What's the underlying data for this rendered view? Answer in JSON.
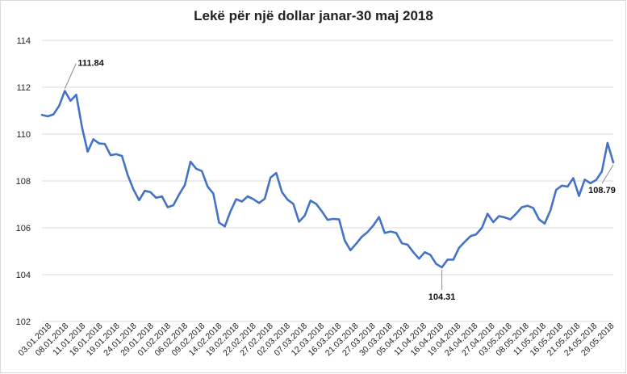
{
  "chart_data": {
    "type": "line",
    "title": "Lekë për një dollar janar-30 maj 2018",
    "xlabel": "",
    "ylabel": "",
    "ylim": [
      102,
      114
    ],
    "yticks": [
      102,
      104,
      106,
      108,
      110,
      112,
      114
    ],
    "grid": true,
    "legend": "none",
    "line_color": "#4472c4",
    "tick_labels": [
      "03.01.2018",
      "08.01.2018",
      "11.01.2018",
      "16.01.2018",
      "19.01.2018",
      "24.01.2018",
      "29.01.2018",
      "01.02.2018",
      "06.02.2018",
      "09.02.2018",
      "14.02.2018",
      "19.02.2018",
      "22.02.2018",
      "27.02.2018",
      "02.03.2018",
      "07.03.2018",
      "12.03.2018",
      "16.03.2018",
      "21.03.2018",
      "27.03.2018",
      "30.03.2018",
      "05.04.2018",
      "11.04.2018",
      "16.04.2018",
      "19.04.2018",
      "24.04.2018",
      "27.04.2018",
      "03.05.2018",
      "08.05.2018",
      "11.05.2018",
      "16.05.2018",
      "21.05.2018",
      "24.05.2018",
      "29.05.2018"
    ],
    "values": [
      110.82,
      110.76,
      110.84,
      111.2,
      111.84,
      111.42,
      111.68,
      110.3,
      109.25,
      109.78,
      109.6,
      109.58,
      109.1,
      109.14,
      109.07,
      108.26,
      107.64,
      107.18,
      107.58,
      107.52,
      107.28,
      107.34,
      106.88,
      106.96,
      107.42,
      107.82,
      108.82,
      108.52,
      108.42,
      107.76,
      107.46,
      106.22,
      106.06,
      106.7,
      107.22,
      107.12,
      107.34,
      107.22,
      107.06,
      107.24,
      108.14,
      108.34,
      107.52,
      107.2,
      107.02,
      106.26,
      106.52,
      107.16,
      107.02,
      106.7,
      106.34,
      106.38,
      106.36,
      105.46,
      105.04,
      105.32,
      105.62,
      105.82,
      106.1,
      106.46,
      105.78,
      105.84,
      105.78,
      105.34,
      105.28,
      104.96,
      104.68,
      104.96,
      104.84,
      104.46,
      104.31,
      104.64,
      104.64,
      105.14,
      105.4,
      105.64,
      105.72,
      106.0,
      106.6,
      106.24,
      106.5,
      106.44,
      106.36,
      106.6,
      106.88,
      106.94,
      106.84,
      106.36,
      106.18,
      106.74,
      107.62,
      107.8,
      107.76,
      108.12,
      107.36,
      108.06,
      107.9,
      108.04,
      108.4,
      109.62,
      108.79
    ],
    "annotations": [
      {
        "label": "111.84",
        "index": 4
      },
      {
        "label": "104.31",
        "index": 70
      },
      {
        "label": "108.79",
        "index": 100
      }
    ]
  }
}
